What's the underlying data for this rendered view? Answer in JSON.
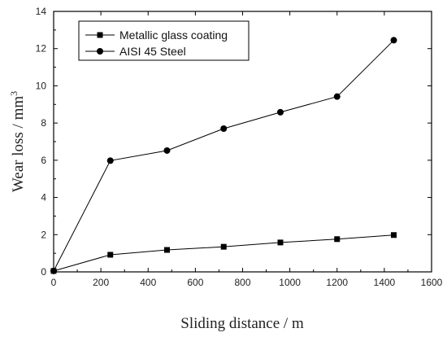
{
  "chart_data": {
    "type": "line",
    "xlabel": "Sliding distance / m",
    "ylabel": "Wear loss / mm",
    "ylabel_superscript": "3",
    "xlim": [
      0,
      1600
    ],
    "ylim": [
      0,
      14
    ],
    "x_ticks": [
      0,
      200,
      400,
      600,
      800,
      1000,
      1200,
      1400,
      1600
    ],
    "y_ticks": [
      0,
      2,
      4,
      6,
      8,
      10,
      12,
      14
    ],
    "grid": false,
    "legend_position": "top-left",
    "series": [
      {
        "name": "Metallic glass coating",
        "marker": "square",
        "color": "#000000",
        "x": [
          0,
          240,
          480,
          720,
          960,
          1200,
          1440
        ],
        "y": [
          0.05,
          0.92,
          1.18,
          1.35,
          1.58,
          1.76,
          1.98
        ]
      },
      {
        "name": "AISI 45 Steel",
        "marker": "circle",
        "color": "#000000",
        "x": [
          0,
          240,
          480,
          720,
          960,
          1200,
          1440
        ],
        "y": [
          0.05,
          5.98,
          6.52,
          7.7,
          8.58,
          9.42,
          12.45
        ]
      }
    ]
  }
}
